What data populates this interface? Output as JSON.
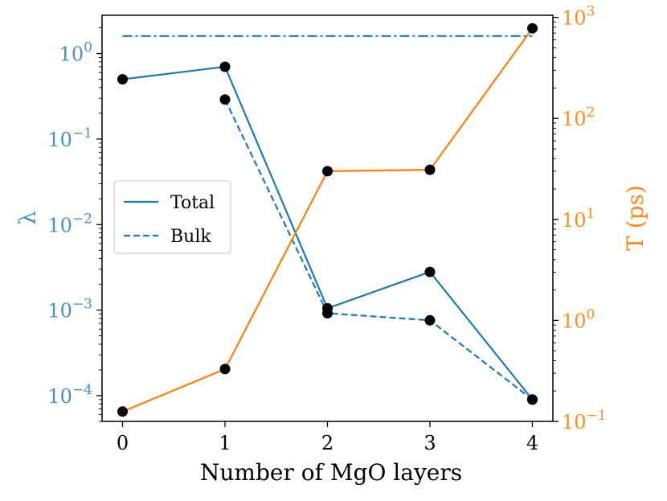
{
  "chart_data": {
    "type": "line",
    "xlabel": "Number of MgO layers",
    "ylabel_left": "λ",
    "ylabel_right": "T (ps)",
    "x_ticks": [
      0,
      1,
      2,
      3,
      4
    ],
    "xlim": [
      -0.2,
      4.2
    ],
    "left_axis": {
      "scale": "log",
      "range": [
        5e-05,
        2.8
      ],
      "ticks": [
        {
          "value": 1,
          "base": "10",
          "exp": "0"
        },
        {
          "value": 0.1,
          "base": "10",
          "exp": "−1"
        },
        {
          "value": 0.01,
          "base": "10",
          "exp": "−2"
        },
        {
          "value": 0.001,
          "base": "10",
          "exp": "−3"
        },
        {
          "value": 0.0001,
          "base": "10",
          "exp": "−4"
        }
      ]
    },
    "right_axis": {
      "scale": "log",
      "range": [
        0.1,
        1050
      ],
      "ticks": [
        {
          "value": 0.1,
          "base": "10",
          "exp": "−1"
        },
        {
          "value": 1,
          "base": "10",
          "exp": "0"
        },
        {
          "value": 10,
          "base": "10",
          "exp": "1"
        },
        {
          "value": 100,
          "base": "10",
          "exp": "2"
        },
        {
          "value": 1000,
          "base": "10",
          "exp": "3"
        }
      ]
    },
    "series": [
      {
        "name": "Total",
        "axis": "left",
        "style": "solid",
        "color": "#1f77b4",
        "x": [
          0,
          1,
          2,
          3,
          4
        ],
        "y": [
          0.5,
          0.7,
          0.00105,
          0.0028,
          9e-05
        ]
      },
      {
        "name": "Bulk",
        "axis": "left",
        "style": "dashed",
        "color": "#1f77b4",
        "x": [
          1,
          2,
          3,
          4
        ],
        "y": [
          0.29,
          0.00092,
          0.00076,
          9e-05
        ]
      },
      {
        "name": "",
        "axis": "left",
        "style": "dashdot",
        "color": "#1f77b4",
        "x": [
          0,
          4
        ],
        "y": [
          1.6,
          1.6
        ]
      },
      {
        "name": "T",
        "axis": "right",
        "style": "solid",
        "color": "#ff7f0e",
        "x": [
          0,
          1,
          2,
          3,
          4
        ],
        "y": [
          0.125,
          0.33,
          30,
          31,
          780
        ]
      }
    ],
    "marker_color": "#000000",
    "left_color": "#4a90c2",
    "right_color": "#ff8c1a",
    "legend": {
      "position": "center-left",
      "entries": [
        "Total",
        "Bulk"
      ]
    }
  }
}
